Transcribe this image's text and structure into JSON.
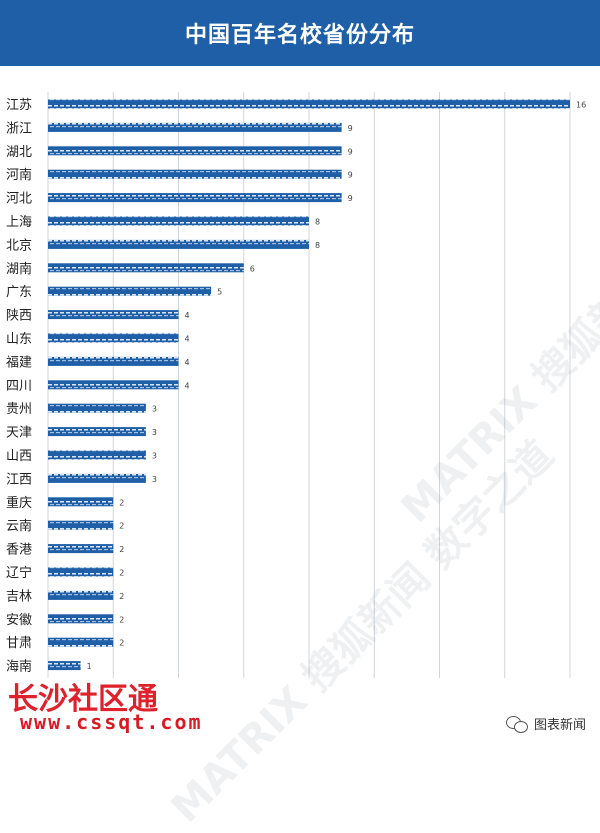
{
  "header": {
    "title": "中国百年名校省份分布"
  },
  "chart_data": {
    "type": "bar",
    "orientation": "horizontal",
    "title": "中国百年名校省份分布",
    "categories": [
      "江苏",
      "浙江",
      "湖北",
      "河南",
      "河北",
      "上海",
      "北京",
      "湖南",
      "广东",
      "陕西",
      "山东",
      "福建",
      "四川",
      "贵州",
      "天津",
      "山西",
      "江西",
      "重庆",
      "云南",
      "香港",
      "辽宁",
      "吉林",
      "安徽",
      "甘肃",
      "海南"
    ],
    "values": [
      16,
      9,
      9,
      9,
      9,
      8,
      8,
      6,
      5,
      4,
      4,
      4,
      4,
      3,
      3,
      3,
      3,
      2,
      2,
      2,
      2,
      2,
      2,
      2,
      1
    ],
    "xlim": [
      0,
      16
    ],
    "xticks": [
      0,
      2,
      4,
      6,
      8,
      10,
      12,
      14,
      16
    ],
    "grid": true,
    "bar_color": "#1e5fa8"
  },
  "watermark": {
    "text": "MATRIX 搜狐新闻 数字之道"
  },
  "footer": {
    "brand": "长沙社区通",
    "url": "www.cssqt.com",
    "source": "图表新闻",
    "source_icon": "wechat-icon"
  }
}
